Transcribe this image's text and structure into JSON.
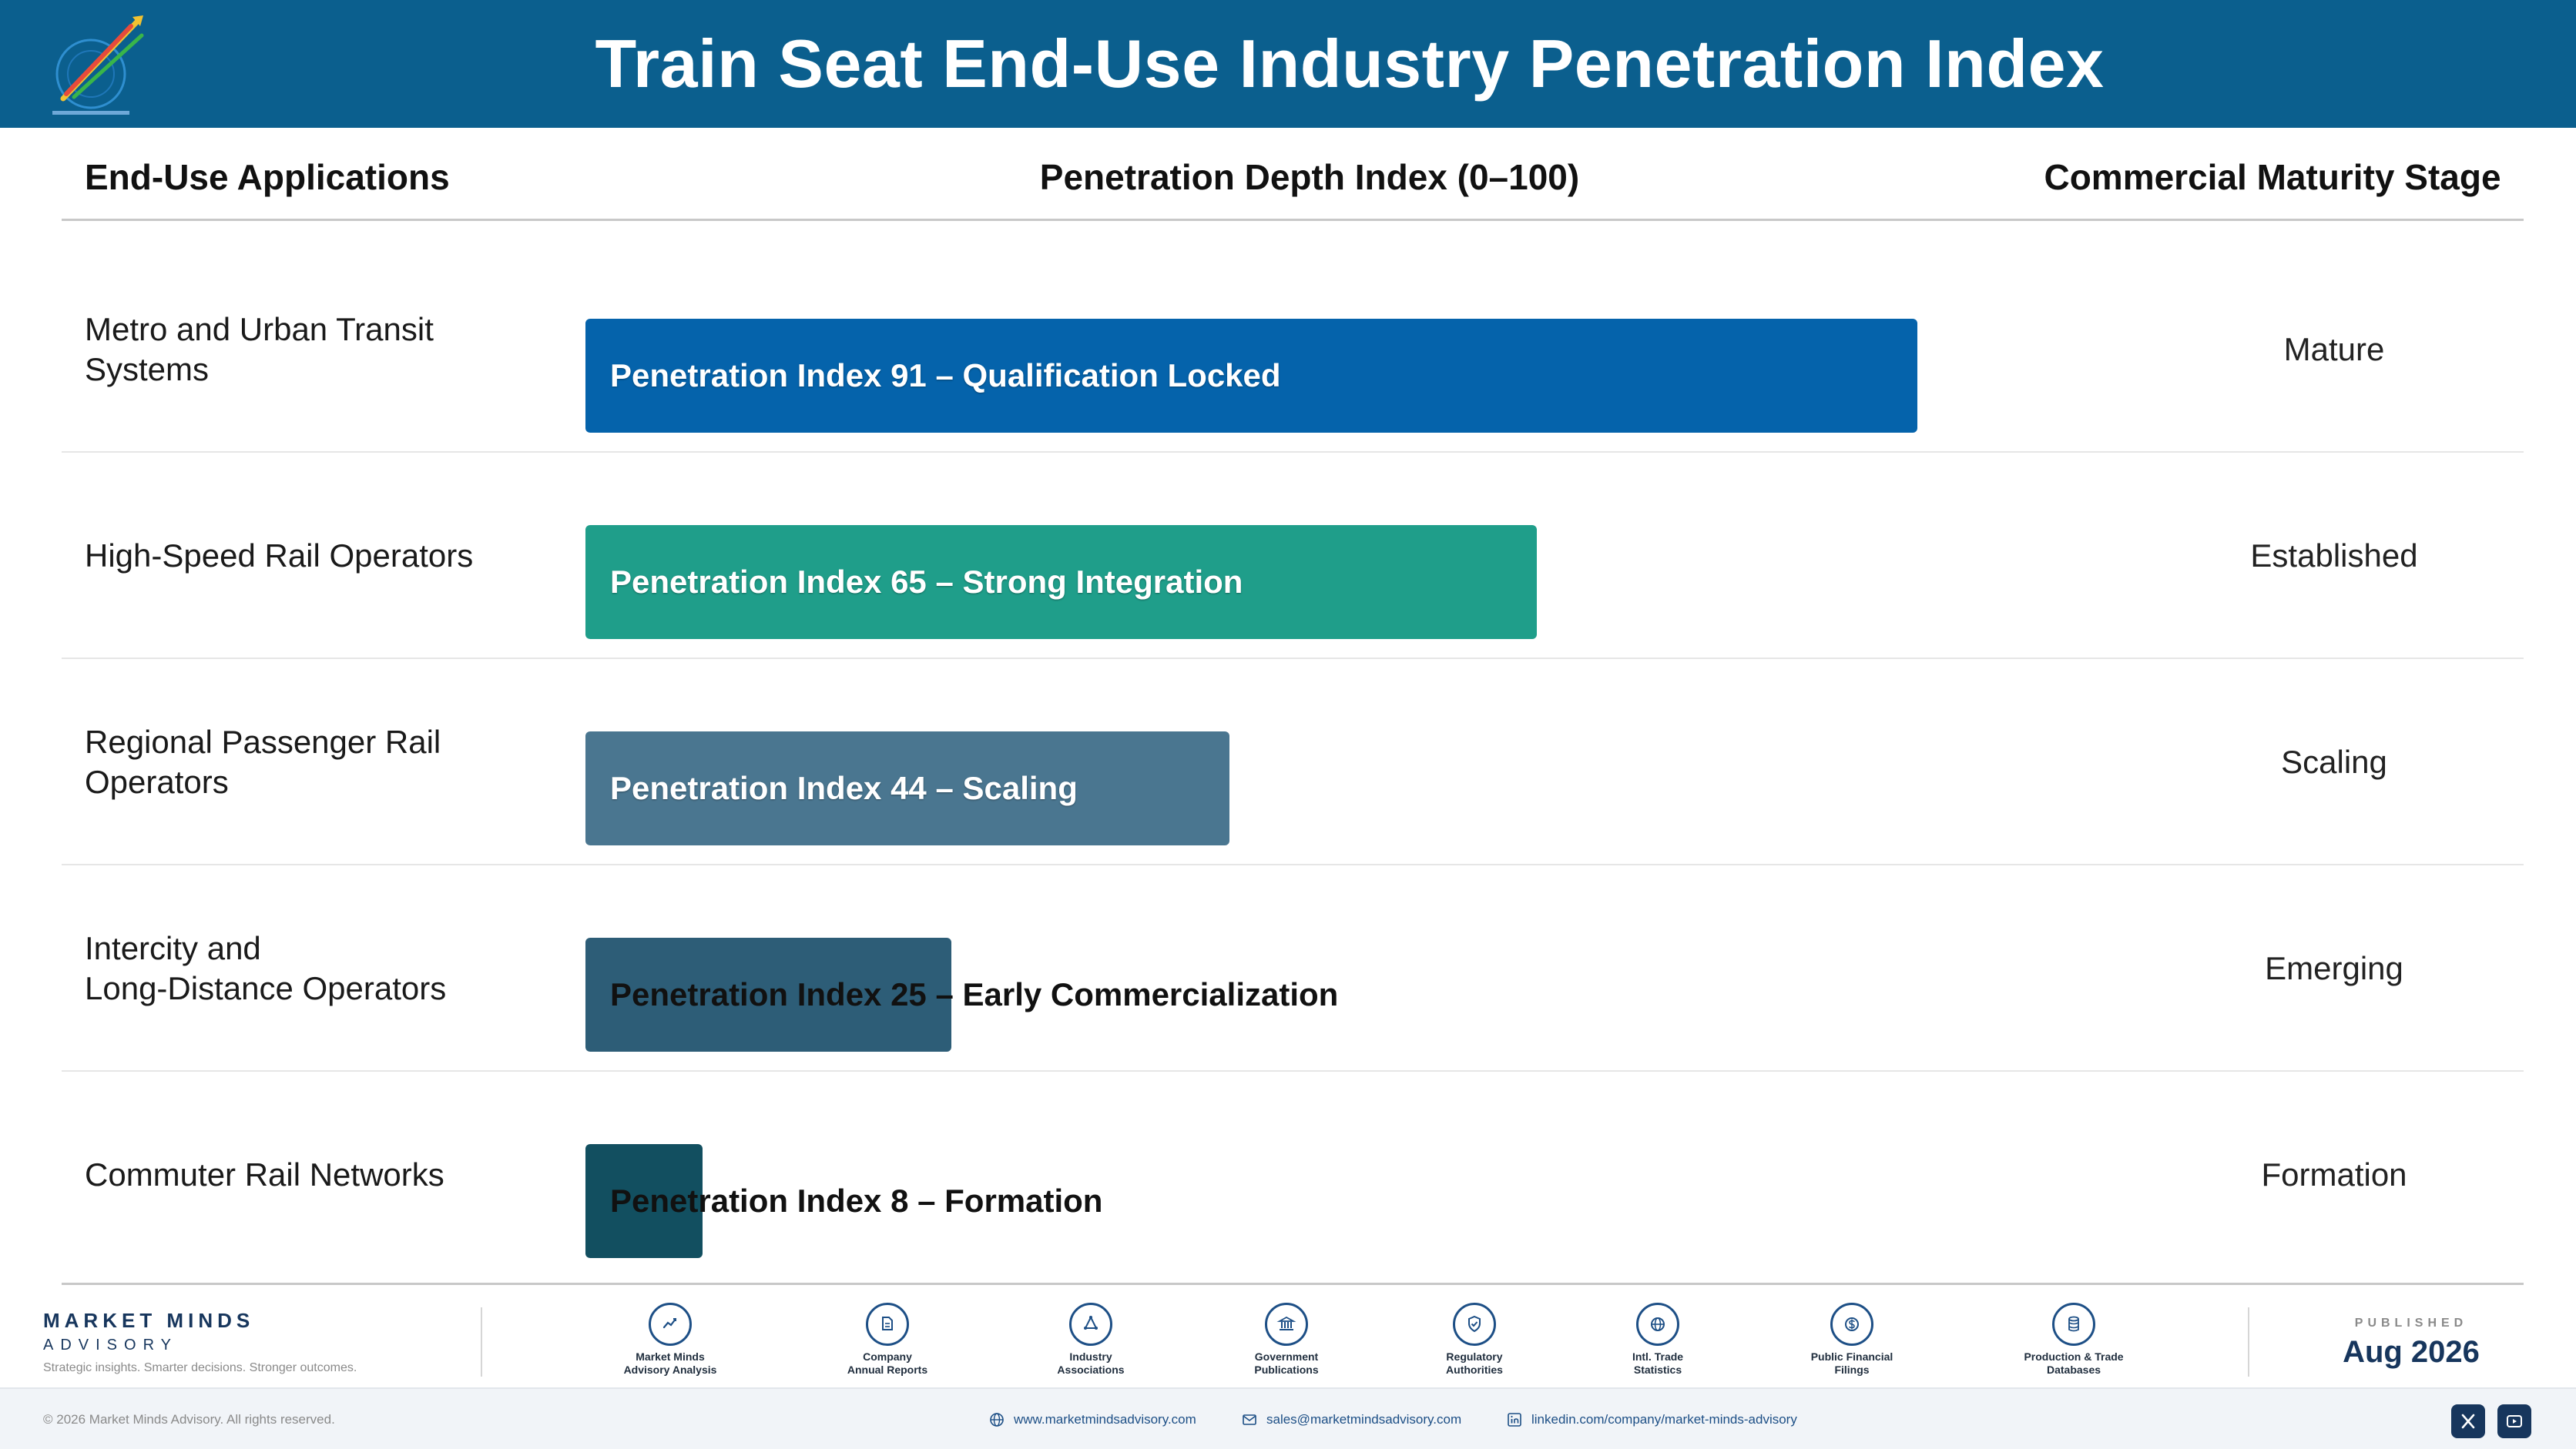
{
  "title": "Train Seat End-Use Industry Penetration Index",
  "columns": {
    "apps": "End-Use Applications",
    "index": "Penetration Depth Index (0–100)",
    "stage": "Commercial Maturity Stage"
  },
  "chart_data": {
    "type": "bar",
    "orientation": "horizontal",
    "xlim": [
      0,
      100
    ],
    "categories": [
      "Metro and Urban Transit Systems",
      "High-Speed Rail Operators",
      "Regional Passenger Rail Operators",
      "Intercity and\nLong-Distance Operators",
      "Commuter Rail Networks"
    ],
    "values": [
      91,
      65,
      44,
      25,
      8
    ],
    "bar_labels": [
      "Penetration Index 91 – Qualification Locked",
      "Penetration Index 65 – Strong Integration",
      "Penetration Index 44 – Scaling",
      "Penetration Index 25 – Early Commercialization",
      "Penetration Index 8 – Formation"
    ],
    "stages": [
      "Mature",
      "Established",
      "Scaling",
      "Emerging",
      "Formation"
    ],
    "colors": [
      "#0563ab",
      "#1f9e8a",
      "#4a7690",
      "#2d5d77",
      "#124f60"
    ]
  },
  "footer": {
    "brand_name": "MARKET MINDS",
    "brand_sub": "ADVISORY",
    "brand_tag": "Strategic insights. Smarter decisions. Stronger outcomes.",
    "sources": [
      {
        "label": "Market Minds\nAdvisory Analysis",
        "icon": "chart-line-icon"
      },
      {
        "label": "Company\nAnnual Reports",
        "icon": "document-icon"
      },
      {
        "label": "Industry\nAssociations",
        "icon": "network-icon"
      },
      {
        "label": "Government\nPublications",
        "icon": "government-building-icon"
      },
      {
        "label": "Regulatory\nAuthorities",
        "icon": "shield-check-icon"
      },
      {
        "label": "Intl. Trade\nStatistics",
        "icon": "globe-icon"
      },
      {
        "label": "Public Financial\nFilings",
        "icon": "dollar-coin-icon"
      },
      {
        "label": "Production & Trade\nDatabases",
        "icon": "database-icon"
      }
    ],
    "published_label": "PUBLISHED",
    "published_date": "Aug 2026",
    "copyright": "© 2026 Market Minds Advisory. All rights reserved.",
    "website": "www.marketmindsadvisory.com",
    "email": "sales@marketmindsadvisory.com",
    "linkedin": "linkedin.com/company/market-minds-advisory"
  }
}
